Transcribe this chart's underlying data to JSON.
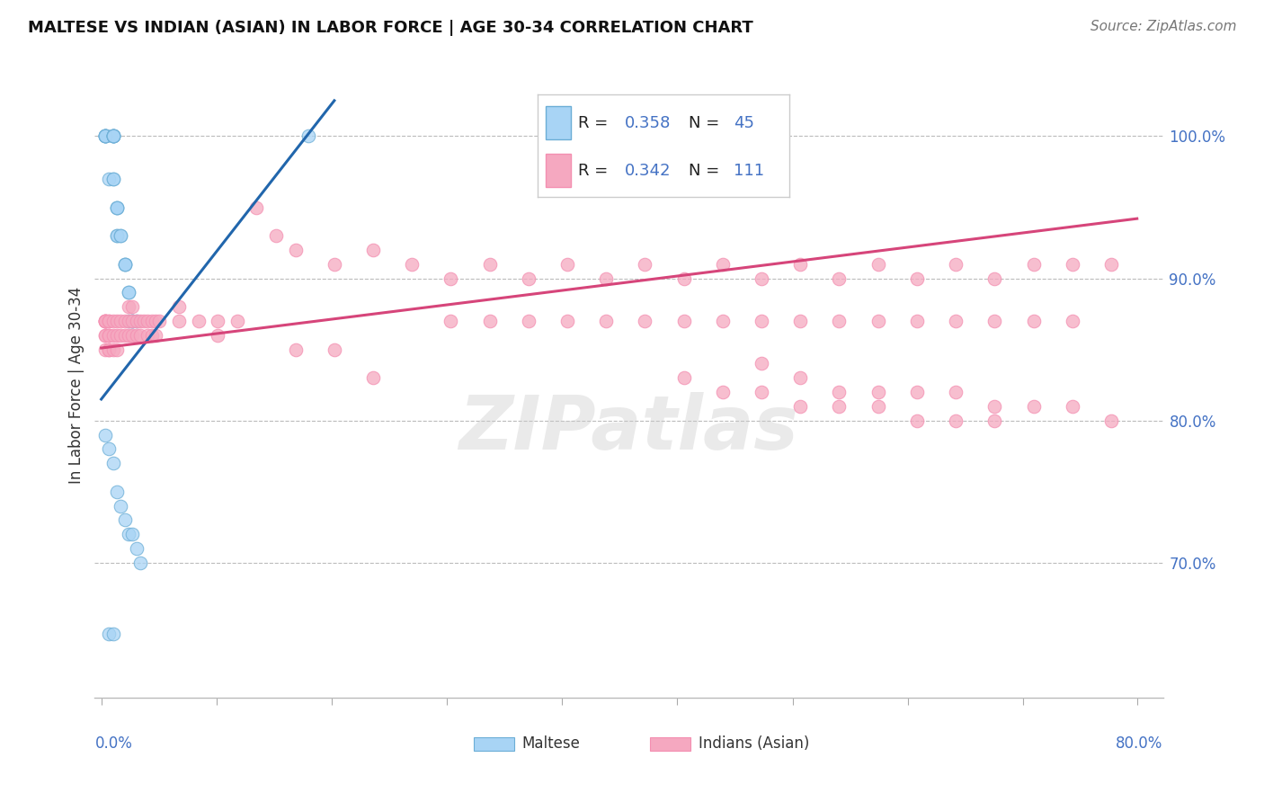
{
  "title": "MALTESE VS INDIAN (ASIAN) IN LABOR FORCE | AGE 30-34 CORRELATION CHART",
  "source_text": "Source: ZipAtlas.com",
  "ylabel": "In Labor Force | Age 30-34",
  "watermark": "ZIPatlas",
  "blue_label": "Maltese",
  "pink_label": "Indians (Asian)",
  "blue_color": "#a8d4f5",
  "pink_color": "#f5a8c0",
  "blue_edge_color": "#6baed6",
  "pink_edge_color": "#f48fb1",
  "blue_line_color": "#2166ac",
  "pink_line_color": "#d6457a",
  "legend_r1": "R = 0.358",
  "legend_n1": "N = 45",
  "legend_r2": "R = 0.342",
  "legend_n2": "N = 111",
  "legend_color": "#4472c4",
  "ytick_values": [
    0.7,
    0.8,
    0.9,
    1.0
  ],
  "ytick_labels": [
    "70.0%",
    "80.0%",
    "90.0%",
    "100.0%"
  ],
  "xlim": [
    -0.005,
    0.82
  ],
  "ylim": [
    0.605,
    1.045
  ],
  "xtick_positions": [
    0.0,
    0.089,
    0.178,
    0.267,
    0.356,
    0.445,
    0.534,
    0.623,
    0.712,
    0.8
  ],
  "blue_scatter_x": [
    0.003,
    0.003,
    0.003,
    0.003,
    0.003,
    0.003,
    0.006,
    0.009,
    0.009,
    0.009,
    0.009,
    0.009,
    0.009,
    0.009,
    0.009,
    0.012,
    0.012,
    0.012,
    0.012,
    0.012,
    0.015,
    0.015,
    0.018,
    0.018,
    0.018,
    0.021,
    0.021,
    0.021,
    0.024,
    0.024,
    0.024,
    0.027,
    0.003,
    0.006,
    0.009,
    0.012,
    0.015,
    0.018,
    0.021,
    0.024,
    0.027,
    0.03,
    0.006,
    0.009,
    0.16
  ],
  "blue_scatter_y": [
    1.0,
    1.0,
    1.0,
    1.0,
    1.0,
    1.0,
    0.97,
    1.0,
    1.0,
    1.0,
    1.0,
    1.0,
    1.0,
    0.97,
    0.97,
    0.95,
    0.95,
    0.95,
    0.93,
    0.93,
    0.93,
    0.93,
    0.91,
    0.91,
    0.91,
    0.89,
    0.89,
    0.87,
    0.87,
    0.87,
    0.87,
    0.87,
    0.79,
    0.78,
    0.77,
    0.75,
    0.74,
    0.73,
    0.72,
    0.72,
    0.71,
    0.7,
    0.65,
    0.65,
    1.0
  ],
  "pink_scatter_x": [
    0.003,
    0.003,
    0.003,
    0.003,
    0.003,
    0.003,
    0.003,
    0.003,
    0.006,
    0.006,
    0.006,
    0.006,
    0.006,
    0.006,
    0.009,
    0.009,
    0.009,
    0.012,
    0.012,
    0.012,
    0.015,
    0.015,
    0.018,
    0.018,
    0.021,
    0.021,
    0.021,
    0.024,
    0.024,
    0.024,
    0.027,
    0.027,
    0.03,
    0.03,
    0.033,
    0.036,
    0.036,
    0.039,
    0.039,
    0.042,
    0.042,
    0.045,
    0.06,
    0.06,
    0.075,
    0.09,
    0.09,
    0.105,
    0.12,
    0.135,
    0.15,
    0.18,
    0.21,
    0.24,
    0.27,
    0.3,
    0.33,
    0.36,
    0.39,
    0.42,
    0.45,
    0.48,
    0.51,
    0.54,
    0.57,
    0.6,
    0.63,
    0.66,
    0.69,
    0.72,
    0.75,
    0.78,
    0.15,
    0.18,
    0.21,
    0.27,
    0.3,
    0.33,
    0.36,
    0.39,
    0.42,
    0.45,
    0.48,
    0.51,
    0.54,
    0.57,
    0.6,
    0.63,
    0.66,
    0.69,
    0.72,
    0.75,
    0.6,
    0.63,
    0.66,
    0.69,
    0.72,
    0.75,
    0.78,
    0.51,
    0.54,
    0.57,
    0.6,
    0.63,
    0.66,
    0.69,
    0.45,
    0.48,
    0.51,
    0.54,
    0.57
  ],
  "pink_scatter_y": [
    0.87,
    0.87,
    0.87,
    0.87,
    0.87,
    0.86,
    0.86,
    0.85,
    0.87,
    0.87,
    0.86,
    0.86,
    0.85,
    0.85,
    0.87,
    0.86,
    0.85,
    0.87,
    0.86,
    0.85,
    0.87,
    0.86,
    0.87,
    0.86,
    0.88,
    0.87,
    0.86,
    0.88,
    0.87,
    0.86,
    0.87,
    0.86,
    0.87,
    0.86,
    0.87,
    0.87,
    0.86,
    0.87,
    0.86,
    0.87,
    0.86,
    0.87,
    0.88,
    0.87,
    0.87,
    0.87,
    0.86,
    0.87,
    0.95,
    0.93,
    0.92,
    0.91,
    0.92,
    0.91,
    0.9,
    0.91,
    0.9,
    0.91,
    0.9,
    0.91,
    0.9,
    0.91,
    0.9,
    0.91,
    0.9,
    0.91,
    0.9,
    0.91,
    0.9,
    0.91,
    0.91,
    0.91,
    0.85,
    0.85,
    0.83,
    0.87,
    0.87,
    0.87,
    0.87,
    0.87,
    0.87,
    0.87,
    0.87,
    0.87,
    0.87,
    0.87,
    0.87,
    0.87,
    0.87,
    0.87,
    0.87,
    0.87,
    0.82,
    0.82,
    0.82,
    0.81,
    0.81,
    0.81,
    0.8,
    0.84,
    0.83,
    0.82,
    0.81,
    0.8,
    0.8,
    0.8,
    0.83,
    0.82,
    0.82,
    0.81,
    0.81
  ],
  "blue_trendline_x": [
    0.0,
    0.18
  ],
  "blue_trendline_y": [
    0.815,
    1.025
  ],
  "pink_trendline_x": [
    0.0,
    0.8
  ],
  "pink_trendline_y": [
    0.851,
    0.942
  ]
}
